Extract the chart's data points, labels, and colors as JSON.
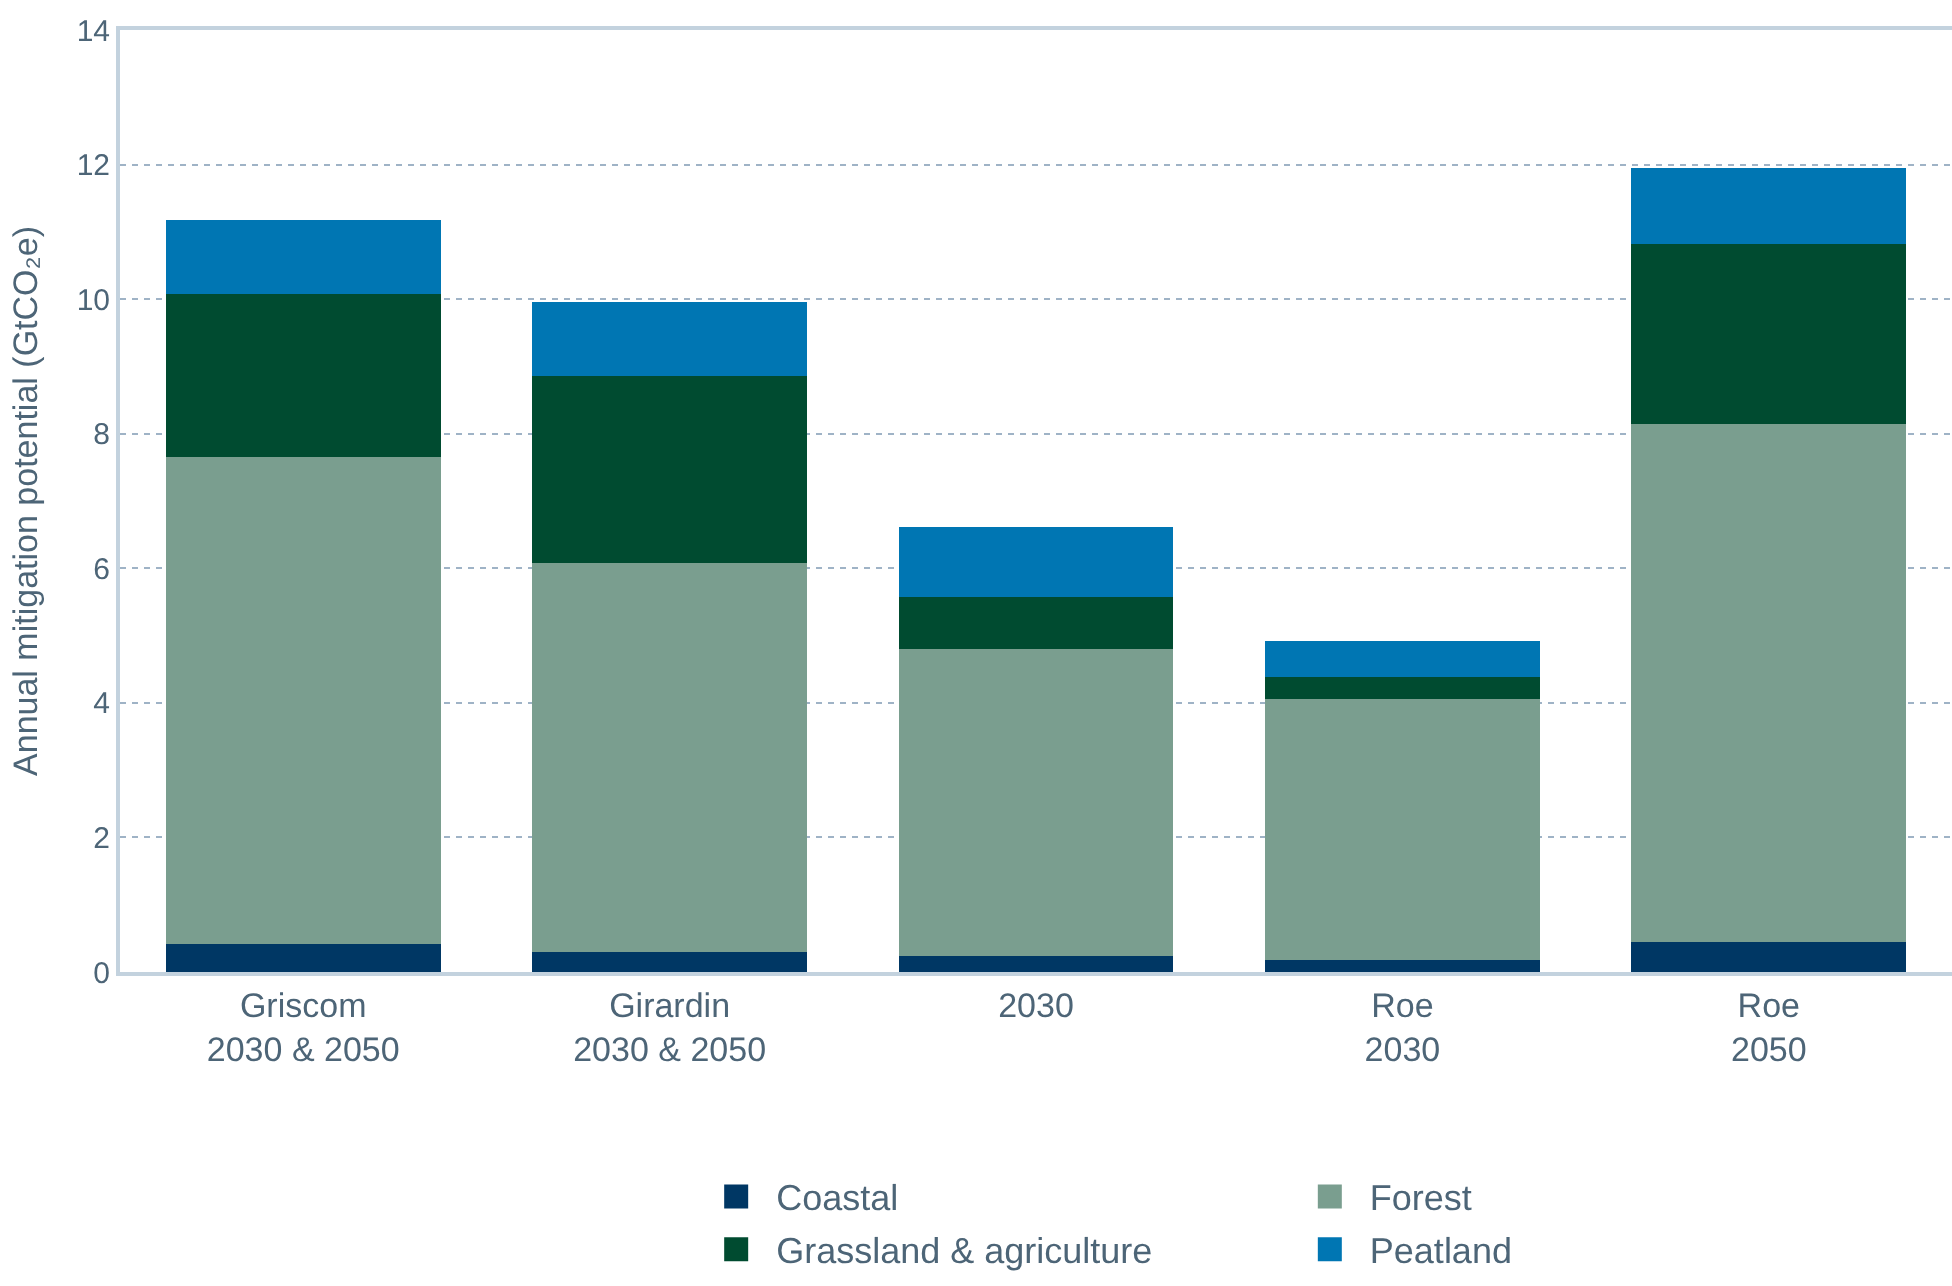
{
  "chart_data": {
    "type": "bar",
    "stacked": true,
    "ylabel": "Annual mitigation potential (GtCO₂e)",
    "categories": [
      "Griscom\n2030 & 2050",
      "Girardin\n2030 & 2050",
      "2030",
      "Roe\n2030",
      "Roe\n2050"
    ],
    "series": [
      {
        "name": "Coastal",
        "color": "#003764",
        "values": [
          0.42,
          0.3,
          0.24,
          0.18,
          0.44
        ]
      },
      {
        "name": "Forest",
        "color": "#7a9e8f",
        "values": [
          7.23,
          5.78,
          4.56,
          3.88,
          7.71
        ]
      },
      {
        "name": "Grassland & agriculture",
        "color": "#004b30",
        "values": [
          2.43,
          2.78,
          0.77,
          0.33,
          2.67
        ]
      },
      {
        "name": "Peatland",
        "color": "#0076b3",
        "values": [
          1.1,
          1.1,
          1.04,
          0.53,
          1.13
        ]
      }
    ],
    "ylim": [
      0,
      14
    ],
    "yticks": [
      0,
      2,
      4,
      6,
      8,
      10,
      12,
      14
    ],
    "grid": "y",
    "legend": "bottom"
  }
}
